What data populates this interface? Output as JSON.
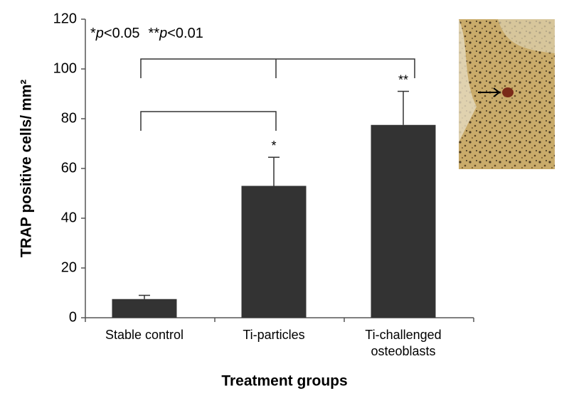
{
  "chart_data": {
    "type": "bar",
    "categories": [
      "Stable control",
      "Ti-particles",
      [
        "Ti-challenged",
        "osteoblasts"
      ]
    ],
    "values": [
      7.5,
      53,
      77.5
    ],
    "errors": [
      1.5,
      11.5,
      13.5
    ],
    "significance": [
      null,
      "*",
      "**"
    ],
    "color": "#333333",
    "note": [
      "*",
      "p",
      "<0.05",
      "**",
      "p",
      "<0.01"
    ],
    "xlabel": "Treatment groups",
    "ylabel": "TRAP positive cells/ mm²",
    "ylim": [
      0,
      120
    ],
    "yticks": [
      0,
      20,
      40,
      60,
      80,
      100,
      120
    ],
    "grid": false
  }
}
